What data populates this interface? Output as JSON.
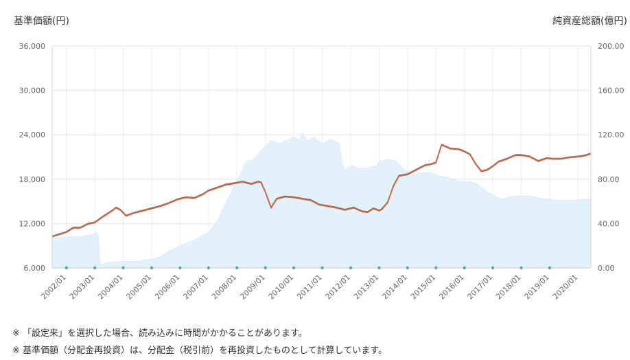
{
  "chart_data": {
    "type": "line",
    "y_left_label": "基準価額(円)",
    "y_right_label": "純資産総額(億円)",
    "y_left_ticks": [
      "6,000",
      "12,000",
      "18,000",
      "24,000",
      "30,000",
      "36,000"
    ],
    "y_left_range": [
      6000,
      36000
    ],
    "y_right_ticks": [
      "0.00",
      "40.00",
      "80.00",
      "120.00",
      "160.00",
      "200.00"
    ],
    "y_right_range": [
      0,
      200
    ],
    "x_ticks": [
      "2002/01",
      "2003/01",
      "2004/01",
      "2005/01",
      "2006/01",
      "2007/01",
      "2008/01",
      "2009/01",
      "2010/01",
      "2011/01",
      "2012/01",
      "2013/01",
      "2014/01",
      "2015/01",
      "2016/01",
      "2017/01",
      "2018/01",
      "2019/01",
      "2020/01"
    ],
    "x_range": [
      2001.5,
      2020.45
    ],
    "grid": true,
    "series": [
      {
        "kind": "line",
        "axis": "left",
        "color": "#d9643a",
        "x": [
          2001.5,
          2001.75,
          2002.0,
          2002.25,
          2002.5,
          2002.75,
          2003.0,
          2003.25,
          2003.5,
          2003.75,
          2003.9,
          2004.1,
          2004.4,
          2004.7,
          2005.0,
          2005.3,
          2005.6,
          2005.9,
          2006.2,
          2006.5,
          2006.8,
          2007.0,
          2007.3,
          2007.6,
          2007.9,
          2008.2,
          2008.5,
          2008.75,
          2008.85,
          2009.0,
          2009.2,
          2009.4,
          2009.7,
          2010.0,
          2010.3,
          2010.6,
          2010.9,
          2011.2,
          2011.5,
          2011.8,
          2012.1,
          2012.4,
          2012.6,
          2012.8,
          2013.0,
          2013.1,
          2013.3,
          2013.5,
          2013.7,
          2014.0,
          2014.3,
          2014.6,
          2014.85,
          2015.0,
          2015.2,
          2015.5,
          2015.8,
          2016.0,
          2016.2,
          2016.4,
          2016.6,
          2016.8,
          2017.0,
          2017.2,
          2017.5,
          2017.8,
          2018.0,
          2018.3,
          2018.6,
          2018.9,
          2019.1,
          2019.4,
          2019.7,
          2020.0,
          2020.2,
          2020.45
        ],
        "y": [
          10200,
          10500,
          10800,
          11400,
          11400,
          11900,
          12100,
          12800,
          13400,
          14100,
          13800,
          13000,
          13400,
          13700,
          14000,
          14300,
          14700,
          15200,
          15500,
          15400,
          15900,
          16400,
          16800,
          17200,
          17400,
          17600,
          17300,
          17600,
          17500,
          16200,
          14100,
          15300,
          15600,
          15500,
          15300,
          15100,
          14500,
          14300,
          14100,
          13800,
          14100,
          13600,
          13500,
          14000,
          13700,
          13900,
          14800,
          17000,
          18400,
          18600,
          19200,
          19800,
          20000,
          20200,
          22600,
          22100,
          22000,
          21700,
          21300,
          20000,
          19000,
          19200,
          19700,
          20300,
          20700,
          21200,
          21200,
          21000,
          20400,
          20800,
          20700,
          20700,
          20900,
          21000,
          21100,
          21400
        ]
      },
      {
        "kind": "area",
        "axis": "right",
        "color": "#e3f1fb",
        "x": [
          2001.5,
          2002.0,
          2002.5,
          2003.0,
          2003.1,
          2003.2,
          2003.5,
          2004.0,
          2004.5,
          2005.0,
          2005.3,
          2005.6,
          2006.0,
          2006.5,
          2007.0,
          2007.3,
          2007.6,
          2008.0,
          2008.3,
          2008.6,
          2008.8,
          2009.0,
          2009.2,
          2009.5,
          2010.0,
          2010.2,
          2010.3,
          2010.5,
          2010.7,
          2011.0,
          2011.3,
          2011.6,
          2011.7,
          2011.8,
          2012.0,
          2012.3,
          2012.6,
          2012.9,
          2013.0,
          2013.3,
          2013.6,
          2013.9,
          2014.2,
          2014.5,
          2014.8,
          2015.0,
          2015.3,
          2015.6,
          2015.9,
          2016.2,
          2016.5,
          2016.8,
          2017.0,
          2017.3,
          2017.6,
          2017.9,
          2018.2,
          2018.5,
          2018.8,
          2019.0,
          2019.3,
          2019.6,
          2019.9,
          2020.2,
          2020.45
        ],
        "y": [
          27,
          28,
          28,
          31,
          32,
          3,
          5,
          6,
          6,
          8,
          10,
          15,
          20,
          25,
          32,
          42,
          58,
          78,
          95,
          98,
          104,
          110,
          115,
          112,
          118,
          115,
          122,
          114,
          118,
          112,
          116,
          112,
          95,
          88,
          92,
          90,
          90,
          92,
          96,
          98,
          96,
          88,
          84,
          86,
          86,
          84,
          82,
          80,
          78,
          78,
          75,
          68,
          66,
          62,
          64,
          65,
          65,
          64,
          62,
          62,
          61,
          61,
          61,
          62,
          62
        ]
      }
    ],
    "distribution_markers_x": [
      2002.0,
      2003.0,
      2004.0,
      2005.0,
      2006.0,
      2007.0,
      2008.0,
      2009.0,
      2010.0,
      2011.0,
      2012.0,
      2013.0,
      2014.0,
      2015.0,
      2016.0,
      2017.0,
      2018.0,
      2019.0
    ],
    "distribution_marker_color": "#178f8f"
  },
  "notes": [
    "※ 「設定来」を選択した場合、読み込みに時間がかかることがあります。",
    "※ 基準価額（分配金再投資）は、分配金（税引前）を再投資したものとして計算しています。"
  ]
}
